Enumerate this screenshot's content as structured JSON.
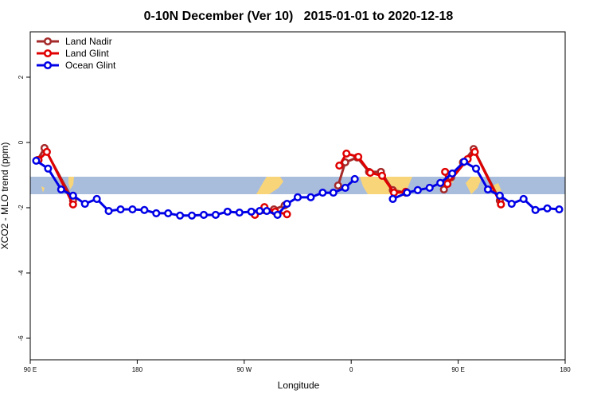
{
  "chart_data": {
    "type": "line",
    "title": "0-10N December (Ver 10)   2015-01-01 to 2020-12-18",
    "x_label": "Longitude",
    "y_label": "XCO2 - MLO trend (ppm)",
    "xlim": [
      90,
      540
    ],
    "xticks": [
      {
        "value": 90,
        "label": "90 E"
      },
      {
        "value": 180,
        "label": "180"
      },
      {
        "value": 270,
        "label": "90 W"
      },
      {
        "value": 360,
        "label": "0"
      },
      {
        "value": 450,
        "label": "90 E"
      },
      {
        "value": 540,
        "label": "180"
      }
    ],
    "ylim": [
      -6.66,
      3.39
    ],
    "yticks": [
      -6,
      -4,
      -2,
      0,
      2
    ],
    "legend": "top-left",
    "series": [
      {
        "name": "Land Nadir",
        "color": "#a52a2a",
        "x": [
          96,
          102,
          126,
          null,
          278,
          286,
          295,
          304,
          null,
          349,
          355,
          365,
          375,
          385,
          395,
          406,
          null,
          438,
          444,
          454,
          463,
          485
        ],
        "values": [
          -0.54,
          -0.17,
          -1.78,
          null,
          -2.17,
          -2.07,
          -2.05,
          -1.93,
          null,
          -1.32,
          -0.61,
          -0.46,
          -0.9,
          -0.9,
          -1.46,
          -1.54,
          null,
          -1.44,
          -1.07,
          -0.61,
          -0.2,
          -1.78
        ]
      },
      {
        "name": "Land Glint",
        "color": "#e00000",
        "x": [
          97,
          104,
          126,
          null,
          279,
          287,
          296,
          306,
          null,
          350,
          356,
          366,
          376,
          386,
          396,
          406,
          null,
          439,
          441,
          458,
          464,
          486
        ],
        "values": [
          -0.54,
          -0.29,
          -1.9,
          null,
          -2.22,
          -1.98,
          -2.12,
          -2.2,
          null,
          -0.71,
          -0.34,
          -0.44,
          -0.93,
          -1.02,
          -1.54,
          -1.51,
          null,
          -0.9,
          -1.27,
          -0.51,
          -0.29,
          -1.9
        ]
      },
      {
        "name": "Ocean Glint",
        "color": "#0000e6",
        "x": [
          95,
          105,
          116,
          126,
          136,
          146,
          156,
          166,
          176,
          186,
          196,
          206,
          216,
          226,
          236,
          246,
          256,
          266,
          276,
          283,
          289,
          298,
          306,
          315,
          326,
          336,
          345,
          355,
          363,
          null,
          395,
          407,
          416,
          426,
          435,
          445,
          455,
          465,
          475,
          485,
          495,
          505,
          515,
          525,
          535
        ],
        "values": [
          -0.56,
          -0.8,
          -1.44,
          -1.63,
          -1.88,
          -1.73,
          -2.1,
          -2.05,
          -2.05,
          -2.07,
          -2.17,
          -2.17,
          -2.24,
          -2.24,
          -2.22,
          -2.22,
          -2.12,
          -2.15,
          -2.12,
          -2.1,
          -2.1,
          -2.22,
          -1.88,
          -1.68,
          -1.68,
          -1.54,
          -1.54,
          -1.39,
          -1.12,
          null,
          -1.73,
          -1.54,
          -1.46,
          -1.39,
          -1.24,
          -0.95,
          -0.59,
          -0.8,
          -1.44,
          -1.63,
          -1.88,
          -1.73,
          -2.07,
          -2.02,
          -2.05
        ]
      }
    ]
  }
}
